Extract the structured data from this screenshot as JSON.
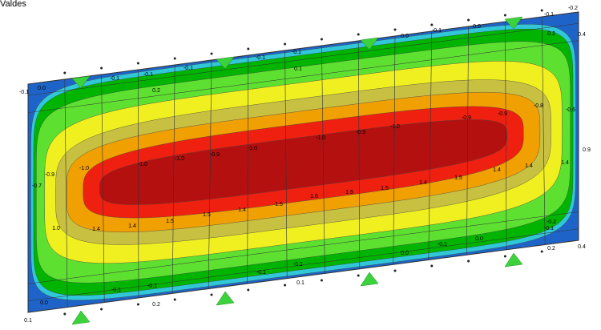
{
  "header": {
    "title": "Valdes"
  },
  "contour_labels": [
    "-0.1",
    "0.0",
    "-0.1",
    "-0.1",
    "0.2",
    "-0.1",
    "-0.1",
    "-0.1",
    "0.1",
    "0.0",
    "-0.1",
    "0.0",
    "-0.1",
    "-0.2",
    "0.4",
    "0.2",
    "-0.9",
    "-0.7",
    "-1.0",
    "-1.0",
    "-1.0",
    "-0.9",
    "-1.0",
    "-1.0",
    "-0.9",
    "-1.0",
    "-0.9",
    "-0.9",
    "-0.8",
    "-0.6",
    "0.9",
    "1.0",
    "1.4",
    "1.4",
    "1.5",
    "1.5",
    "1.4",
    "1.5",
    "1.6",
    "1.5",
    "1.5",
    "1.4",
    "1.5",
    "1.4",
    "1.4",
    "1.4",
    "-0.2",
    "-0.1",
    "0.0",
    "-0.1",
    "0.0",
    "-0.1",
    "0.1",
    "-0.1",
    "-0.1",
    "0.2",
    "-0.1",
    "0.0",
    "0.1",
    "0.2",
    "0.4"
  ]
}
